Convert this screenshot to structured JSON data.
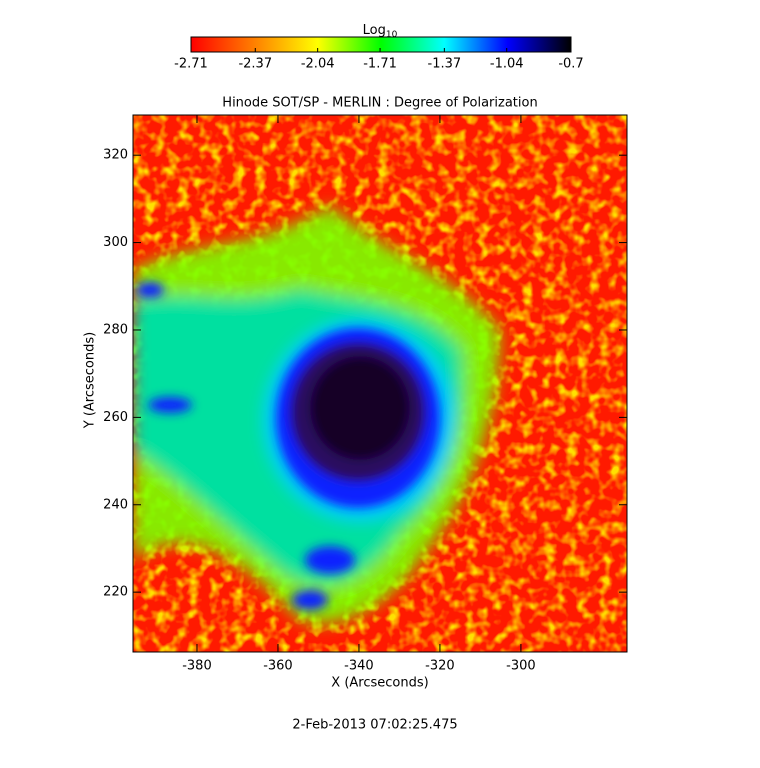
{
  "chart_data": {
    "type": "image",
    "title": "Hinode SOT/SP - MERLIN : Degree of Polarization",
    "x_label": "X (Arcseconds)",
    "y_label": "Y (Arcseconds)",
    "xlim": [
      -395.8,
      -273.8
    ],
    "xticks": [
      -380,
      -360,
      -340,
      -320,
      -300
    ],
    "ylim": [
      206.3,
      329.2
    ],
    "yticks": [
      220,
      240,
      260,
      280,
      300,
      320
    ],
    "colorbar_label": "Log",
    "colorbar_label_subscript": "10",
    "clim": [
      -2.71,
      -0.7
    ],
    "cticks": [
      -2.71,
      -2.37,
      -2.04,
      -1.71,
      -1.37,
      -1.04,
      -0.7
    ],
    "colormap": [
      "#ff0000",
      "#ff8000",
      "#ffff00",
      "#00ff00",
      "#00ffff",
      "#0000ff",
      "#000000"
    ],
    "footer": "2-Feb-2013 07:02:25.475"
  }
}
